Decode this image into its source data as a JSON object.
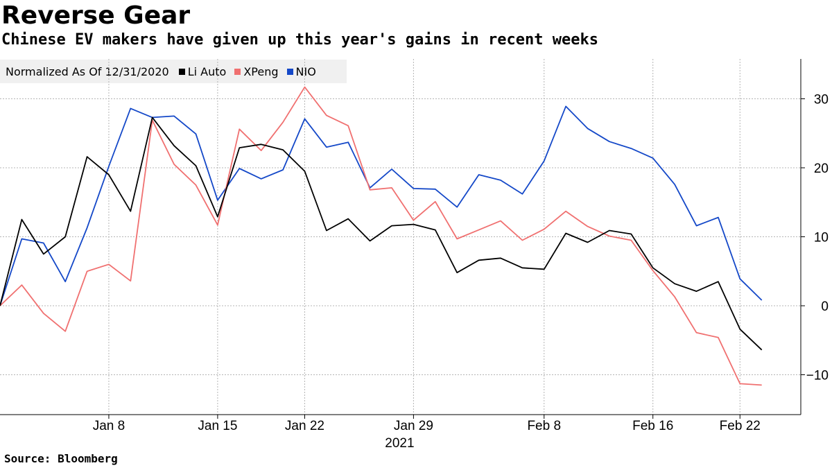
{
  "title": "Reverse Gear",
  "subtitle": "Chinese EV makers have given up this year's gains in recent weeks",
  "source": "Source: Bloomberg",
  "legend": {
    "label": "Normalized As Of 12/31/2020",
    "items": [
      {
        "name": "Li Auto",
        "color": "#000000"
      },
      {
        "name": "XPeng",
        "color": "#f07070"
      },
      {
        "name": "NIO",
        "color": "#1448c8"
      }
    ]
  },
  "chart_data": {
    "type": "line",
    "title": "Reverse Gear",
    "subtitle": "Chinese EV makers have given up this year's gains in recent weeks",
    "xlabel": "2021",
    "ylabel": "",
    "ylim": [
      -16,
      36
    ],
    "yticks": [
      -10,
      0,
      10,
      20,
      30
    ],
    "grid": true,
    "legend_position": "top-left",
    "x": [
      "Dec 31",
      "Jan 4",
      "Jan 5",
      "Jan 6",
      "Jan 7",
      "Jan 8",
      "Jan 11",
      "Jan 12",
      "Jan 13",
      "Jan 14",
      "Jan 15",
      "Jan 19",
      "Jan 20",
      "Jan 21",
      "Jan 22",
      "Jan 25",
      "Jan 26",
      "Jan 27",
      "Jan 28",
      "Jan 29",
      "Feb 1",
      "Feb 2",
      "Feb 3",
      "Feb 4",
      "Feb 5",
      "Feb 8",
      "Feb 9",
      "Feb 10",
      "Feb 11",
      "Feb 12",
      "Feb 16",
      "Feb 17",
      "Feb 18",
      "Feb 19",
      "Feb 22",
      "Feb 23"
    ],
    "x_tick_labels": [
      {
        "label": "Jan 8",
        "index": 5
      },
      {
        "label": "Jan 15",
        "index": 10
      },
      {
        "label": "Jan 22",
        "index": 14
      },
      {
        "label": "Jan 29",
        "index": 19
      },
      {
        "label": "Feb 8",
        "index": 25
      },
      {
        "label": "Feb 16",
        "index": 30
      },
      {
        "label": "Feb 22",
        "index": 34
      }
    ],
    "series": [
      {
        "name": "Li Auto",
        "color": "#000000",
        "values": [
          0,
          12.5,
          7.5,
          10,
          21.6,
          19,
          13.7,
          27.3,
          23.2,
          20.3,
          12.9,
          22.9,
          23.4,
          22.6,
          19.5,
          10.9,
          12.6,
          9.4,
          11.6,
          11.8,
          11.0,
          4.8,
          6.6,
          6.9,
          5.5,
          5.3,
          10.5,
          9.2,
          10.9,
          10.4,
          5.5,
          3.2,
          2.1,
          3.5,
          -3.4,
          -6.4
        ]
      },
      {
        "name": "XPeng",
        "color": "#f07070",
        "values": [
          0,
          3.0,
          -1.1,
          -3.7,
          5.0,
          6.0,
          3.6,
          26.9,
          20.5,
          17.5,
          11.7,
          25.6,
          22.5,
          26.6,
          31.7,
          27.6,
          26.1,
          16.8,
          17.1,
          12.4,
          15.1,
          9.7,
          11.0,
          12.3,
          9.5,
          11.1,
          13.7,
          11.5,
          10.1,
          9.5,
          5.1,
          1.3,
          -3.9,
          -4.6,
          -11.3,
          -11.5
        ]
      },
      {
        "name": "NIO",
        "color": "#1448c8",
        "values": [
          0,
          9.7,
          9.1,
          3.5,
          11.3,
          20.2,
          28.6,
          27.3,
          27.5,
          24.9,
          15.3,
          19.9,
          18.4,
          19.7,
          27.1,
          23.0,
          23.7,
          17.1,
          19.8,
          17.0,
          16.9,
          14.3,
          19.0,
          18.2,
          16.2,
          21.0,
          28.9,
          25.7,
          23.8,
          22.8,
          21.4,
          17.6,
          11.6,
          12.8,
          3.9,
          0.8
        ]
      }
    ]
  }
}
